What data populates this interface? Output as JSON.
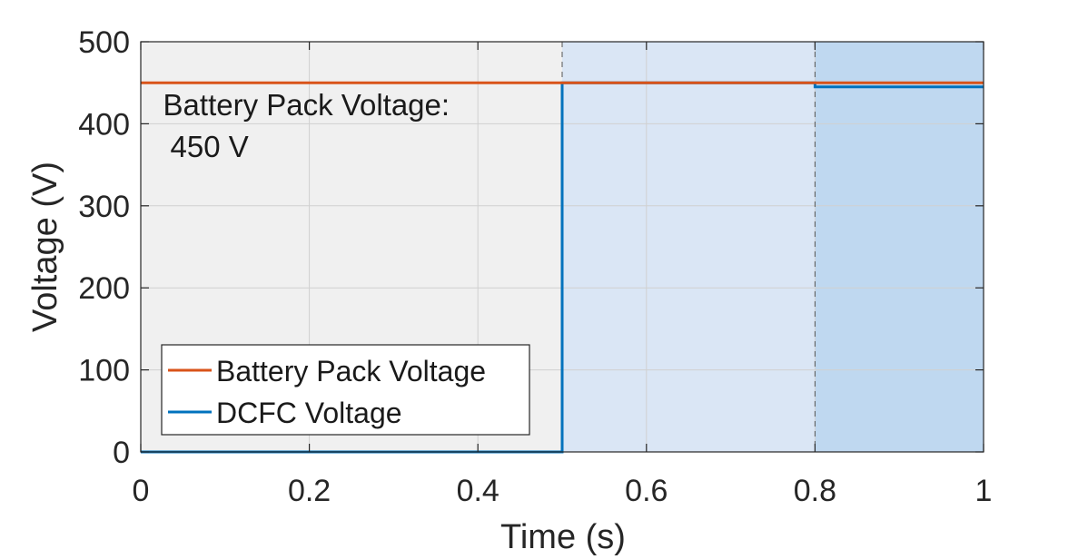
{
  "chart_data": {
    "type": "line",
    "xlabel": "Time (s)",
    "ylabel": "Voltage (V)",
    "xlim": [
      0,
      1
    ],
    "ylim": [
      0,
      500
    ],
    "xticks": [
      "0",
      "0.2",
      "0.4",
      "0.6",
      "0.8",
      "1"
    ],
    "yticks": [
      "0",
      "100",
      "200",
      "300",
      "400",
      "500"
    ],
    "grid": true,
    "legend_position": "bottom-left",
    "regions": [
      {
        "x0": 0.0,
        "x1": 0.5,
        "color": "#f0f0f0"
      },
      {
        "x0": 0.5,
        "x1": 0.8,
        "color": "#dae6f5"
      },
      {
        "x0": 0.8,
        "x1": 1.0,
        "color": "#bfd8f0"
      }
    ],
    "region_boundaries": [
      0.5,
      0.8
    ],
    "annotation": {
      "line1": "Battery Pack Voltage:",
      "line2": "450 V",
      "x": 0.02,
      "y": 450
    },
    "series": [
      {
        "name": "Battery Pack Voltage",
        "color": "#d95319",
        "x": [
          0,
          1
        ],
        "y": [
          450,
          450
        ]
      },
      {
        "name": "DCFC Voltage",
        "color": "#0072bd",
        "x": [
          0,
          0.5,
          0.5,
          0.8,
          0.8,
          1
        ],
        "y": [
          0,
          0,
          450,
          450,
          445,
          445
        ]
      }
    ]
  }
}
